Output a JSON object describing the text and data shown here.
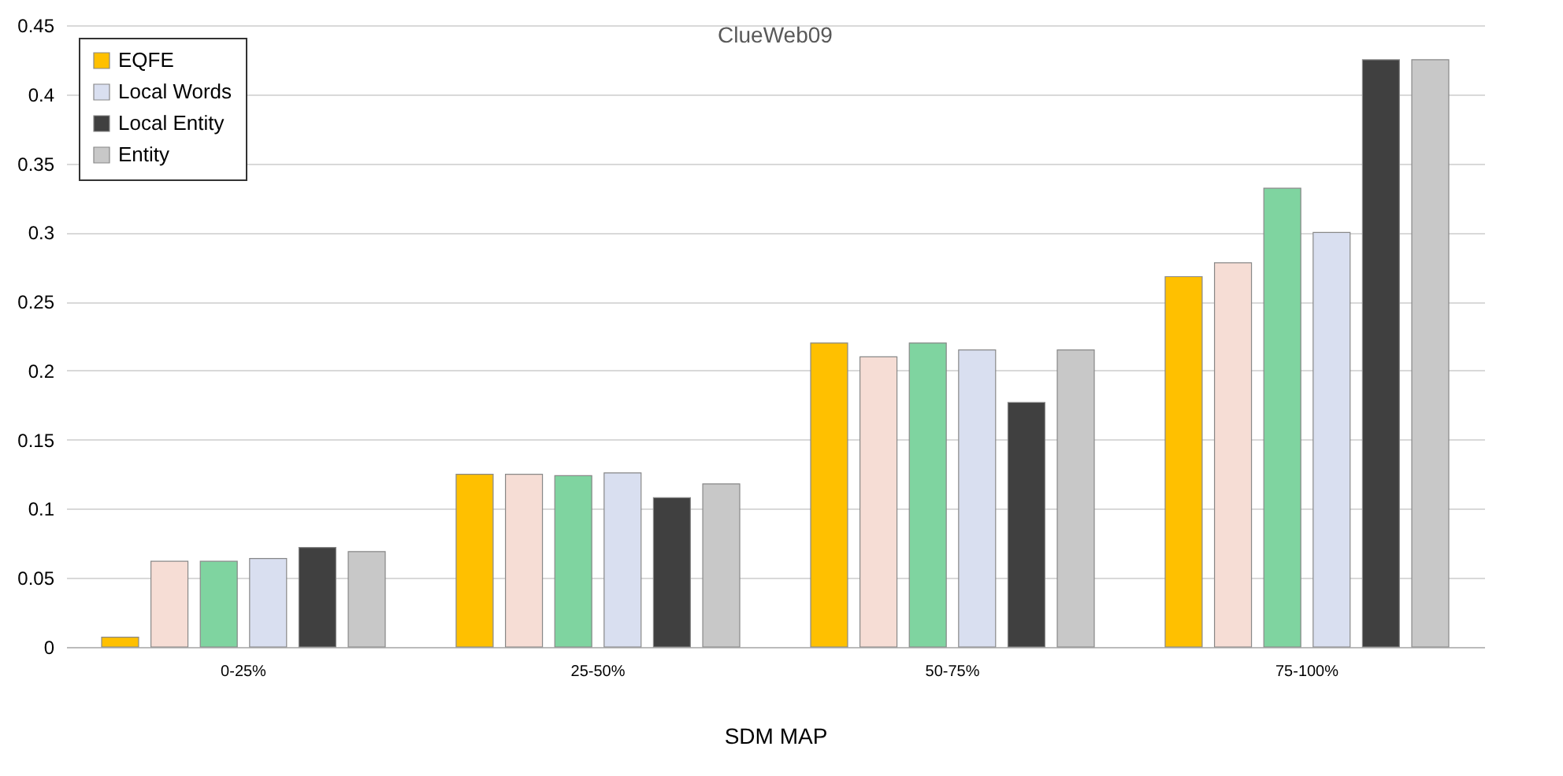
{
  "chart_data": {
    "type": "bar",
    "title": "ClueWeb09",
    "xlabel": "SDM MAP",
    "categories": [
      "0-25%",
      "25-50%",
      "50-75%",
      "75-100%"
    ],
    "series": [
      {
        "name": "EQFE",
        "color": "#ffc000",
        "values": [
          0.007,
          0.125,
          0.22,
          0.268
        ]
      },
      {
        "color": "#f6ddd5",
        "values": [
          0.062,
          0.125,
          0.21,
          0.278
        ]
      },
      {
        "color": "#7fd4a0",
        "values": [
          0.062,
          0.124,
          0.22,
          0.332
        ]
      },
      {
        "name": "Local Words",
        "color": "#d9dff0",
        "values": [
          0.064,
          0.126,
          0.215,
          0.3
        ]
      },
      {
        "name": "Local Entity",
        "color": "#404040",
        "values": [
          0.072,
          0.108,
          0.177,
          0.425
        ]
      },
      {
        "name": "Entity",
        "color": "#c8c8c8",
        "values": [
          0.069,
          0.118,
          0.215,
          0.425
        ]
      }
    ],
    "ylim": [
      0,
      0.45
    ],
    "yticks": [
      0,
      0.05,
      0.1,
      0.15,
      0.2,
      0.25,
      0.3,
      0.35,
      0.4,
      0.45
    ],
    "grid": "y",
    "legend": "top left"
  }
}
